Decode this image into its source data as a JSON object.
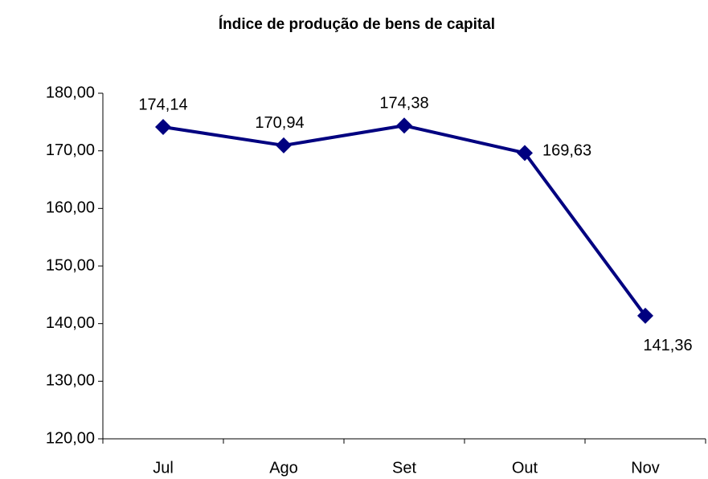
{
  "chart_data": {
    "type": "line",
    "title": "Índice de produção de bens de capital",
    "categories": [
      "Jul",
      "Ago",
      "Set",
      "Out",
      "Nov"
    ],
    "values": [
      174.14,
      170.94,
      174.38,
      169.63,
      141.36
    ],
    "value_labels": [
      "174,14",
      "170,94",
      "174,38",
      "169,63",
      "141,36"
    ],
    "color": "#000080",
    "ylim": [
      120,
      180
    ],
    "yticks": [
      {
        "value": 120,
        "label": "120,00"
      },
      {
        "value": 130,
        "label": "130,00"
      },
      {
        "value": 140,
        "label": "140,00"
      },
      {
        "value": 150,
        "label": "150,00"
      },
      {
        "value": 160,
        "label": "160,00"
      },
      {
        "value": 170,
        "label": "170,00"
      },
      {
        "value": 180,
        "label": "180,00"
      }
    ],
    "grid": false
  }
}
